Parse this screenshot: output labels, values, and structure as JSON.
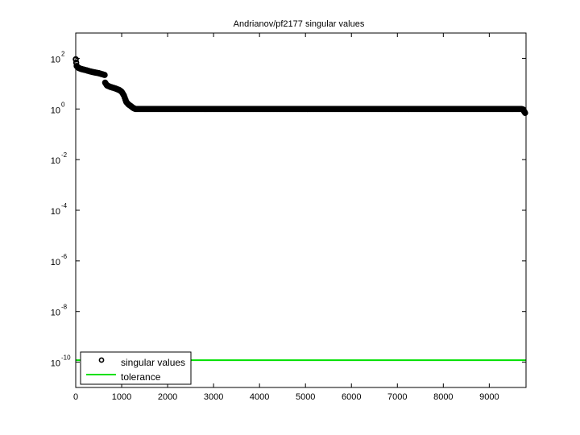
{
  "chart_data": {
    "type": "scatter",
    "title": "Andrianov/pf2177 singular values",
    "xlabel": "",
    "ylabel": "",
    "xscale": "linear",
    "yscale": "log",
    "xlim": [
      0,
      9800
    ],
    "ylim": [
      1e-11,
      1000.0
    ],
    "grid": false,
    "legend_position": "lower left",
    "x_ticks": [
      0,
      1000,
      2000,
      3000,
      4000,
      5000,
      6000,
      7000,
      8000,
      9000
    ],
    "x_tick_labels": [
      "0",
      "1000",
      "2000",
      "3000",
      "4000",
      "5000",
      "6000",
      "7000",
      "8000",
      "9000"
    ],
    "y_ticks_exponents": [
      2,
      0,
      -2,
      -4,
      -6,
      -8,
      -10
    ],
    "y_tick_labels": [
      "10^2",
      "10^0",
      "10^-2",
      "10^-4",
      "10^-6",
      "10^-8",
      "10^-10"
    ],
    "series": [
      {
        "name": "singular values",
        "style": "markers",
        "marker": "circle-open",
        "color": "#000000",
        "x": [
          1,
          20,
          60,
          120,
          200,
          300,
          400,
          500,
          600,
          630,
          640,
          680,
          750,
          850,
          950,
          1000,
          1050,
          1080,
          1100,
          1150,
          1200,
          1250,
          1300,
          1400,
          2000,
          3000,
          4000,
          5000,
          6000,
          7000,
          8000,
          9000,
          9700,
          9740,
          9760,
          9780
        ],
        "values": [
          92,
          50,
          42,
          38,
          35,
          31,
          28,
          26,
          23,
          22,
          11,
          8.5,
          7.5,
          6.6,
          5.6,
          4.8,
          3.4,
          2.4,
          1.9,
          1.5,
          1.3,
          1.1,
          1.0,
          1.0,
          1.0,
          1.0,
          1.0,
          1.0,
          1.0,
          1.0,
          1.0,
          1.0,
          1.0,
          0.95,
          0.8,
          0.7
        ]
      },
      {
        "name": "tolerance",
        "style": "line",
        "color": "#00e000",
        "x": [
          0,
          9800
        ],
        "values": [
          1.2e-10,
          1.2e-10
        ]
      }
    ]
  },
  "legend": {
    "items": [
      {
        "label": "singular values",
        "symbol": "circle-open"
      },
      {
        "label": "tolerance",
        "symbol": "line"
      }
    ]
  }
}
